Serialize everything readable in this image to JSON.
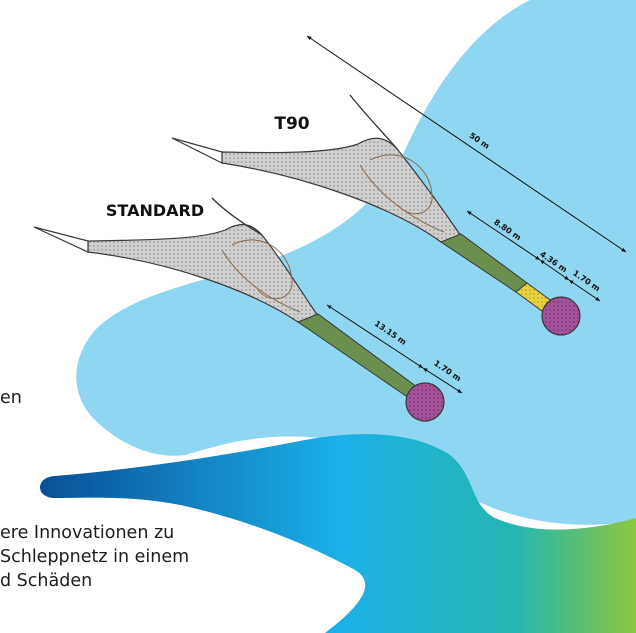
{
  "labels": {
    "t90": "T90",
    "standard": "STANDARD"
  },
  "dimensions": {
    "t90_total": "50 m",
    "t90_extension": "8.80 m",
    "t90_mesh_section": "4.36 m",
    "t90_codend": "1.70 m",
    "standard_extension": "13.15 m",
    "standard_codend": "1.70 m"
  },
  "text": {
    "fragment": "en",
    "paragraph": [
      "ere Innovationen zu",
      "Schleppnetz in einem",
      "d Schäden"
    ]
  },
  "colors": {
    "sky_blob": "#8fd6f2",
    "net_fill": "#cdcdcd",
    "net_stroke": "#3a3a3a",
    "extension": "#6b8f4e",
    "codend": "#a4509a",
    "t90_mesh": "#e9d13f",
    "wave_start": "#0a4f96",
    "wave_mid": "#1bb0e8",
    "wave_end": "#8dc63f"
  }
}
